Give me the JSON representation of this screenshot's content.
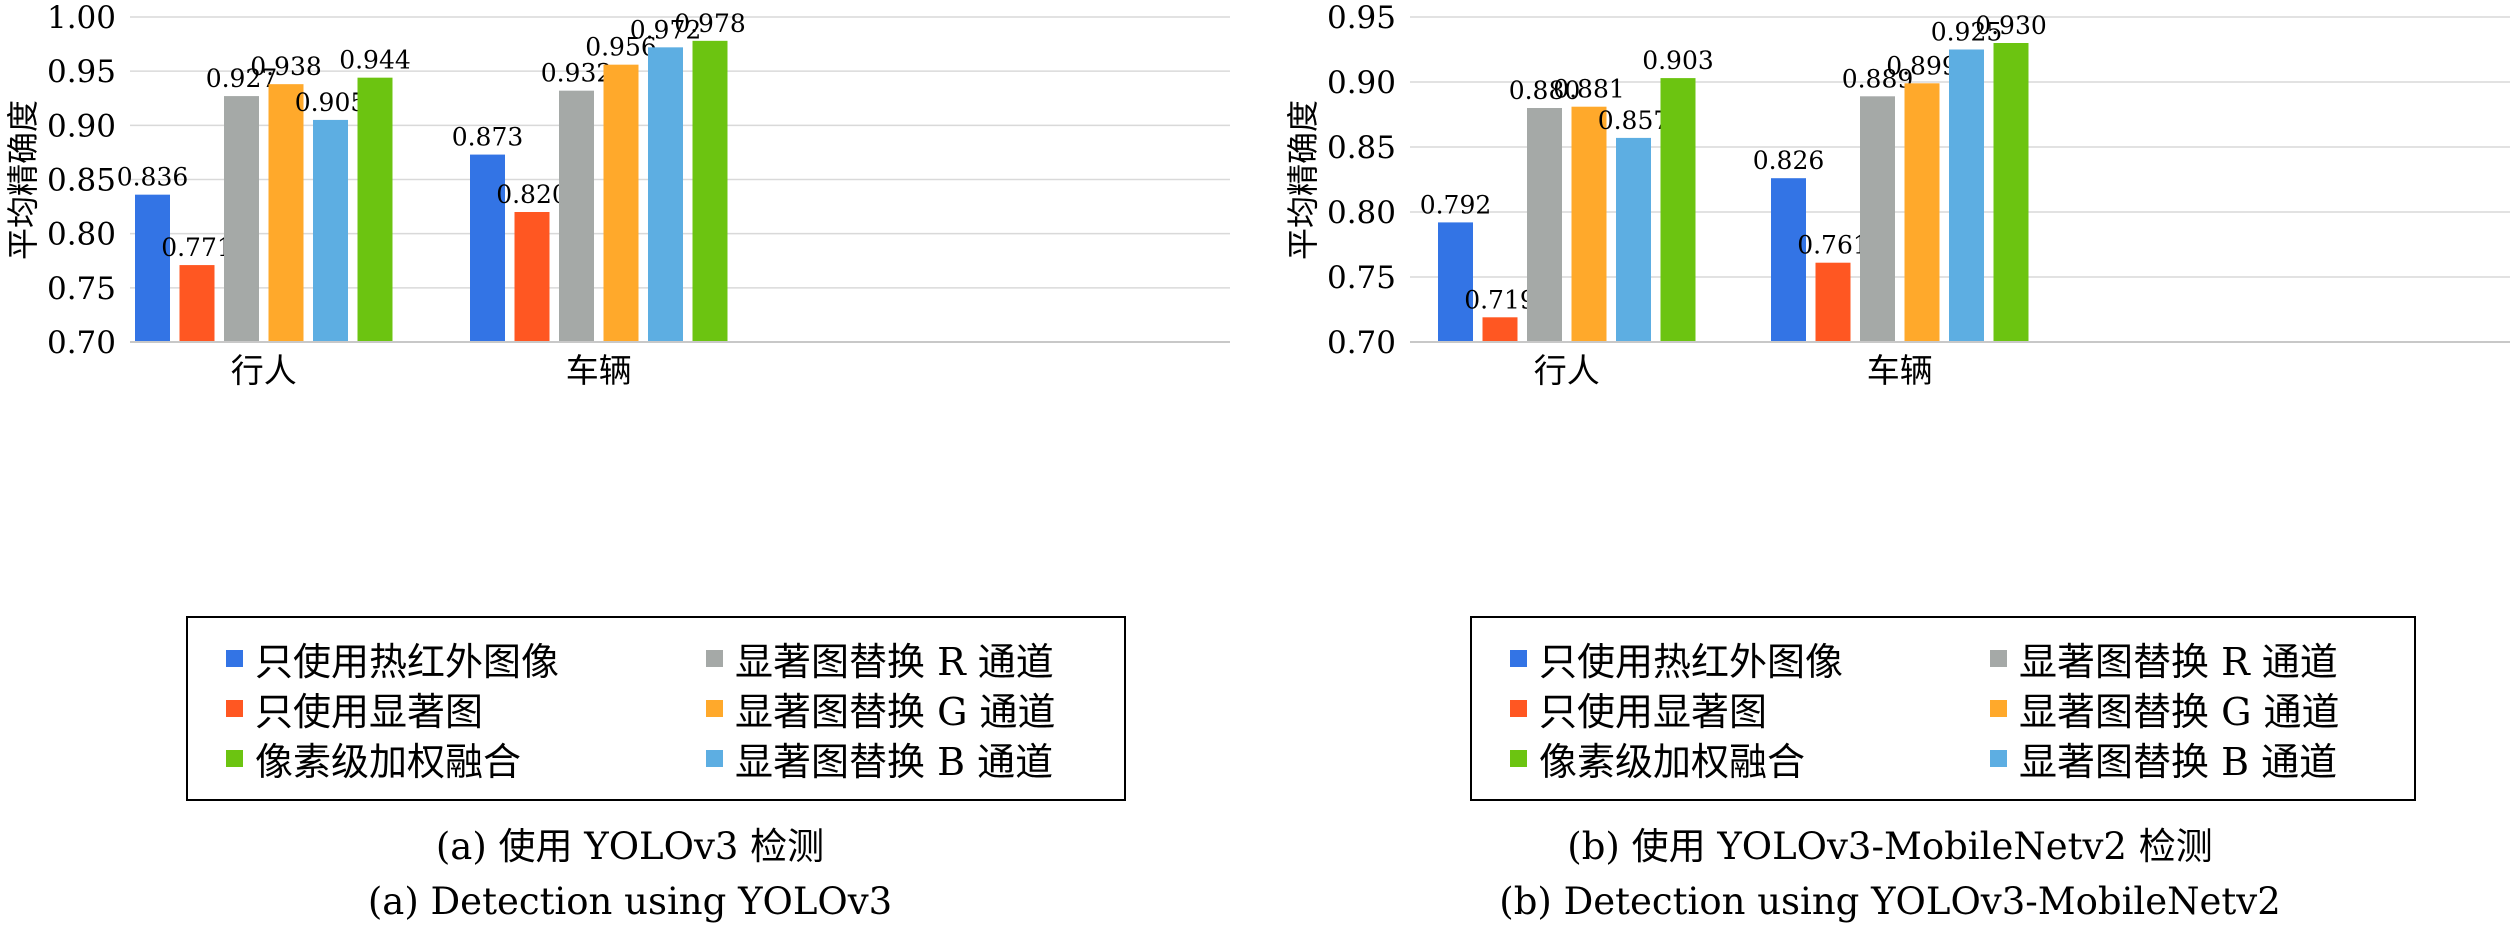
{
  "colors": {
    "blue": "#3374E5",
    "red": "#FF5722",
    "gray": "#A5A9A7",
    "orange": "#FFA92B",
    "lightblue": "#5DAEE2",
    "green": "#6CC411"
  },
  "legend_items": [
    {
      "label": "只使用热红外图像",
      "color": "#3374E5"
    },
    {
      "label": "只使用显著图",
      "color": "#FF5722"
    },
    {
      "label": "像素级加权融合",
      "color": "#6CC411"
    },
    {
      "label": "显著图替换 R 通道",
      "color": "#A5A9A7"
    },
    {
      "label": "显著图替换 G 通道",
      "color": "#FFA92B"
    },
    {
      "label": "显著图替换 B 通道",
      "color": "#5DAEE2"
    }
  ],
  "chart_data": [
    {
      "type": "bar",
      "ylabel": "平均精确度",
      "ylim": [
        0.7,
        1.0
      ],
      "yticks": [
        "0.70",
        "0.75",
        "0.80",
        "0.85",
        "0.90",
        "0.95",
        "1.00"
      ],
      "categories": [
        "行人",
        "车辆"
      ],
      "series": [
        {
          "name": "只使用热红外图像",
          "values": [
            0.836,
            0.873
          ]
        },
        {
          "name": "只使用显著图",
          "values": [
            0.771,
            0.82
          ]
        },
        {
          "name": "显著图替换 R 通道",
          "values": [
            0.927,
            0.932
          ]
        },
        {
          "name": "显著图替换 G 通道",
          "values": [
            0.938,
            0.956
          ]
        },
        {
          "name": "显著图替换 B 通道",
          "values": [
            0.905,
            0.972
          ]
        },
        {
          "name": "像素级加权融合",
          "values": [
            0.944,
            0.978
          ]
        }
      ],
      "value_labels": [
        [
          "0.836",
          "0.873"
        ],
        [
          "0.771",
          "0.820"
        ],
        [
          "0.927",
          "0.932"
        ],
        [
          "0.938",
          "0.956"
        ],
        [
          "0.905",
          "0.972"
        ],
        [
          "0.944",
          "0.978"
        ]
      ],
      "grid": "horizontal",
      "legend": "bottom",
      "caption_cn": "(a) 使用 YOLOv3 检测",
      "caption_en": "(a) Detection using YOLOv3"
    },
    {
      "type": "bar",
      "ylabel": "平均精确度",
      "ylim": [
        0.7,
        0.95
      ],
      "yticks": [
        "0.70",
        "0.75",
        "0.80",
        "0.85",
        "0.90",
        "0.95"
      ],
      "categories": [
        "行人",
        "车辆"
      ],
      "series": [
        {
          "name": "只使用热红外图像",
          "values": [
            0.792,
            0.826
          ]
        },
        {
          "name": "只使用显著图",
          "values": [
            0.719,
            0.761
          ]
        },
        {
          "name": "显著图替换 R 通道",
          "values": [
            0.88,
            0.889
          ]
        },
        {
          "name": "显著图替换 G 通道",
          "values": [
            0.881,
            0.899
          ]
        },
        {
          "name": "显著图替换 B 通道",
          "values": [
            0.857,
            0.925
          ]
        },
        {
          "name": "像素级加权融合",
          "values": [
            0.903,
            0.93
          ]
        }
      ],
      "value_labels": [
        [
          "0.792",
          "0.826"
        ],
        [
          "0.719",
          "0.761"
        ],
        [
          "0.880",
          "0.889"
        ],
        [
          "0.881",
          "0.899"
        ],
        [
          "0.857",
          "0.925"
        ],
        [
          "0.903",
          "0.930"
        ]
      ],
      "grid": "horizontal",
      "legend": "bottom",
      "caption_cn": "(b) 使用 YOLOv3-MobileNetv2 检测",
      "caption_en": "(b) Detection using YOLOv3-MobileNetv2"
    }
  ]
}
